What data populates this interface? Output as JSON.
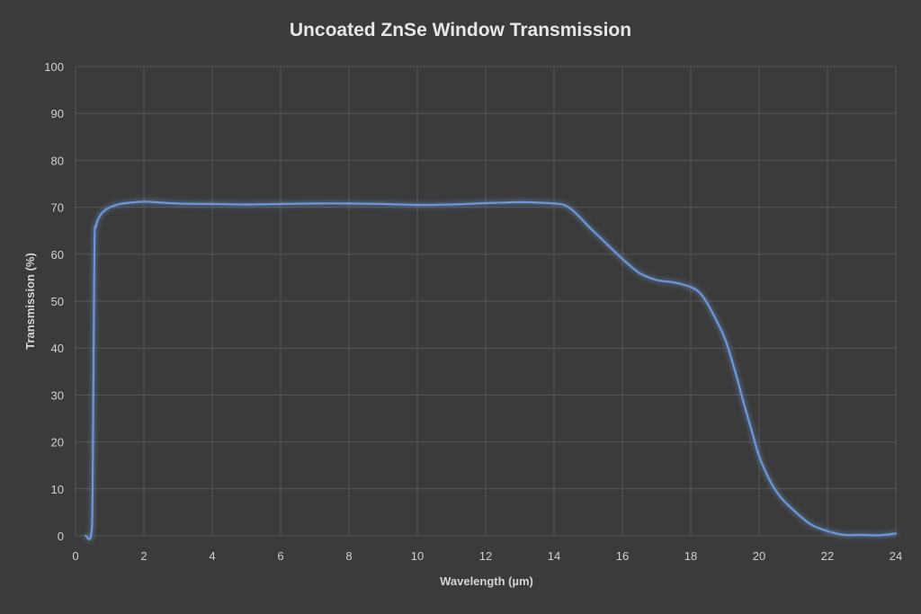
{
  "chart_data": {
    "type": "line",
    "title": "Uncoated ZnSe Window Transmission",
    "xlabel": "Wavelength (µm)",
    "ylabel": "Transmission (%)",
    "xlim": [
      0,
      24
    ],
    "ylim": [
      0,
      100
    ],
    "x_ticks": [
      "0",
      "2",
      "4",
      "6",
      "8",
      "10",
      "12",
      "14",
      "16",
      "18",
      "20",
      "22",
      "24"
    ],
    "y_ticks": [
      "0",
      "10",
      "20",
      "30",
      "40",
      "50",
      "60",
      "70",
      "80",
      "90",
      "100"
    ],
    "grid": true,
    "legend": "none",
    "line_color": "#6d97d8",
    "series": [
      {
        "x": [
          0.3,
          0.45,
          0.5,
          0.55,
          0.6,
          0.7,
          0.8,
          1.0,
          1.3,
          1.6,
          2.0,
          2.5,
          3.0,
          4.0,
          5.0,
          6.0,
          7.0,
          8.0,
          9.0,
          10.0,
          11.0,
          12.0,
          12.5,
          13.0,
          13.5,
          14.0,
          14.3,
          14.6,
          15.0,
          15.5,
          16.0,
          16.5,
          17.0,
          17.5,
          18.0,
          18.3,
          18.6,
          19.0,
          19.3,
          19.6,
          19.8,
          20.0,
          20.3,
          20.6,
          21.0,
          21.5,
          22.0,
          22.5,
          23.0,
          23.5,
          24.0
        ],
        "y": [
          0,
          0,
          10,
          60,
          66,
          68,
          69,
          70,
          70.7,
          71,
          71.2,
          71,
          70.8,
          70.7,
          70.6,
          70.7,
          70.8,
          70.8,
          70.7,
          70.5,
          70.6,
          70.9,
          71,
          71.1,
          71,
          70.8,
          70.5,
          69,
          66,
          62.5,
          59,
          56,
          54.5,
          54,
          53,
          51.5,
          48,
          42,
          35,
          27,
          22,
          17,
          12,
          8.5,
          5.5,
          2.5,
          1,
          0.2,
          0.2,
          0.1,
          0.5
        ]
      }
    ]
  }
}
